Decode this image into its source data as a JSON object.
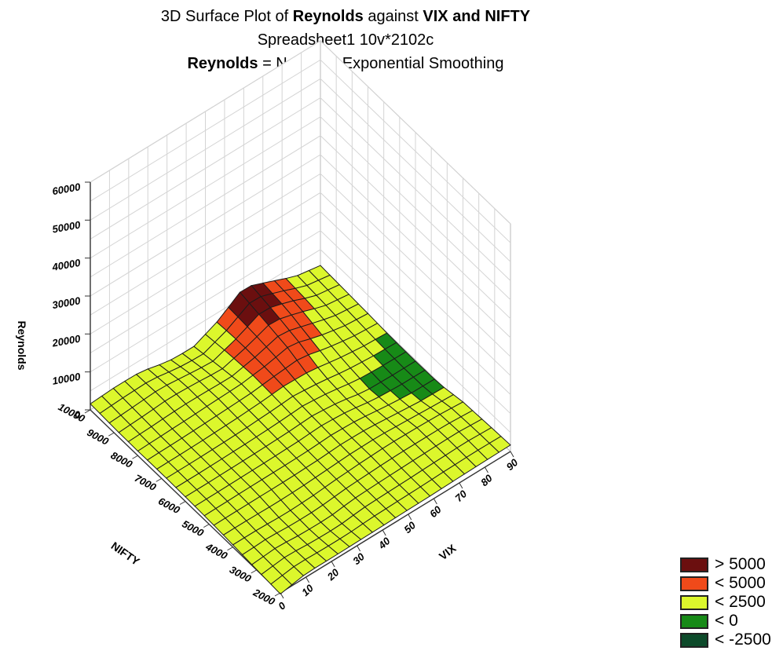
{
  "titles": {
    "line1_prefix": "3D Surface Plot of ",
    "line1_var": "Reynolds",
    "line1_mid": " against ",
    "line1_end": "VIX and NIFTY",
    "line2": "Spreadsheet1 10v*2102c",
    "line3_var": "Reynolds",
    "line3_rest": " = Negative Exponential Smoothing"
  },
  "chart_data": {
    "type": "surface3d",
    "title": "3D Surface Plot of Reynolds against VIX and NIFTY",
    "subtitle": "Spreadsheet1 10v*2102c",
    "fit": "Reynolds = Negative Exponential Smoothing",
    "xlabel": "VIX",
    "ylabel": "NIFTY",
    "zlabel": "Reynolds",
    "xlim": [
      0,
      90
    ],
    "ylim": [
      2000,
      10000
    ],
    "zlim": [
      0,
      60000
    ],
    "x_ticks": [
      "0",
      "10",
      "20",
      "30",
      "40",
      "50",
      "60",
      "70",
      "80",
      "90"
    ],
    "y_ticks": [
      "2000",
      "3000",
      "4000",
      "5000",
      "6000",
      "7000",
      "8000",
      "9000",
      "10000"
    ],
    "z_ticks": [
      "0",
      "10000",
      "20000",
      "30000",
      "40000",
      "50000",
      "60000"
    ],
    "grid": true,
    "legend_position": "bottom-right",
    "legend": [
      {
        "label": "> 5000",
        "color": "#6b0f0f"
      },
      {
        "label": "< 5000",
        "color": "#f04a1a"
      },
      {
        "label": "< 2500",
        "color": "#dcf72c"
      },
      {
        "label": "< 0",
        "color": "#178a17"
      },
      {
        "label": "< -2500",
        "color": "#0d4a2a"
      }
    ],
    "nifty_rows": [
      2000,
      3000,
      4000,
      5000,
      6000,
      7000,
      8000,
      9000,
      10000
    ],
    "vix_cols": [
      0,
      10,
      20,
      30,
      40,
      50,
      60,
      70,
      80,
      90
    ],
    "z_values": [
      [
        -300,
        900,
        900,
        1000,
        1100,
        1200,
        1300,
        1500,
        1600,
        1700
      ],
      [
        100,
        800,
        200,
        100,
        1000,
        1200,
        1400,
        1600,
        1800,
        1400
      ],
      [
        600,
        600,
        300,
        500,
        1100,
        1500,
        1800,
        1700,
        1500,
        1000
      ],
      [
        1000,
        1100,
        1200,
        1200,
        1300,
        1700,
        1500,
        700,
        -100,
        -200
      ],
      [
        1200,
        1200,
        1300,
        1400,
        1600,
        2000,
        1300,
        -100,
        -300,
        -300
      ],
      [
        1300,
        1300,
        1400,
        1600,
        2000,
        2500,
        1800,
        800,
        100,
        -200
      ],
      [
        1200,
        1400,
        1600,
        1900,
        2100,
        3000,
        4500,
        2300,
        800,
        200
      ],
      [
        1300,
        1700,
        2300,
        1800,
        1000,
        3200,
        6000,
        4200,
        1500,
        500
      ],
      [
        1600,
        2000,
        1900,
        200,
        -200,
        2800,
        7500,
        4800,
        2000,
        800
      ]
    ]
  }
}
